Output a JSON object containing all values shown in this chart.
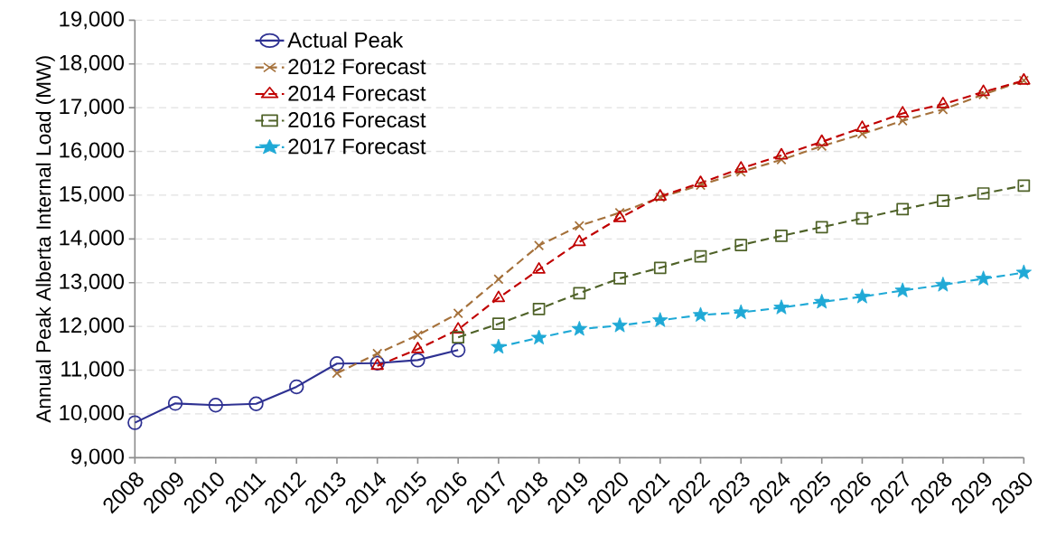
{
  "chart_data": {
    "type": "line",
    "ylabel": "Annual Peak Alberta Internal Load (MW)",
    "categories": [
      "2008",
      "2009",
      "2010",
      "2011",
      "2012",
      "2013",
      "2014",
      "2015",
      "2016",
      "2017",
      "2018",
      "2019",
      "2020",
      "2021",
      "2022",
      "2023",
      "2024",
      "2025",
      "2026",
      "2027",
      "2028",
      "2029",
      "2030"
    ],
    "series": [
      {
        "name": "Actual Peak",
        "color": "#2e3192",
        "marker": "circle",
        "line_style": "solid",
        "values": [
          9800,
          10240,
          10200,
          10230,
          10620,
          11150,
          11160,
          11230,
          11460,
          null,
          null,
          null,
          null,
          null,
          null,
          null,
          null,
          null,
          null,
          null,
          null,
          null,
          null
        ]
      },
      {
        "name": "2012 Forecast",
        "color": "#a5713b",
        "marker": "cross",
        "line_style": "dashed",
        "values": [
          null,
          null,
          null,
          null,
          null,
          10930,
          11380,
          11800,
          12300,
          13080,
          13850,
          14300,
          14600,
          14950,
          15230,
          15530,
          15810,
          16120,
          16400,
          16700,
          16960,
          17300,
          17620
        ]
      },
      {
        "name": "2014 Forecast",
        "color": "#c00000",
        "marker": "triangle",
        "line_style": "dashed",
        "values": [
          null,
          null,
          null,
          null,
          null,
          null,
          11100,
          11480,
          11930,
          12650,
          13300,
          13930,
          14480,
          14970,
          15280,
          15610,
          15910,
          16220,
          16540,
          16870,
          17080,
          17360,
          17620
        ]
      },
      {
        "name": "2016 Forecast",
        "color": "#4f6228",
        "marker": "square",
        "line_style": "dashed",
        "values": [
          null,
          null,
          null,
          null,
          null,
          null,
          null,
          null,
          11750,
          12060,
          12400,
          12760,
          13100,
          13340,
          13600,
          13860,
          14070,
          14270,
          14470,
          14680,
          14870,
          15040,
          15220
        ]
      },
      {
        "name": "2017 Forecast",
        "color": "#1fa9d6",
        "marker": "star",
        "line_style": "dashed",
        "values": [
          null,
          null,
          null,
          null,
          null,
          null,
          null,
          null,
          null,
          11530,
          11740,
          11940,
          12020,
          12140,
          12260,
          12320,
          12430,
          12560,
          12680,
          12820,
          12950,
          13090,
          13230
        ]
      }
    ],
    "ylim": [
      9000,
      19000
    ],
    "yticks": [
      {
        "value": 9000,
        "label": "9,000"
      },
      {
        "value": 10000,
        "label": "10,000"
      },
      {
        "value": 11000,
        "label": "11,000"
      },
      {
        "value": 12000,
        "label": "12,000"
      },
      {
        "value": 13000,
        "label": "13,000"
      },
      {
        "value": 14000,
        "label": "14,000"
      },
      {
        "value": 15000,
        "label": "15,000"
      },
      {
        "value": 16000,
        "label": "16,000"
      },
      {
        "value": 17000,
        "label": "17,000"
      },
      {
        "value": 18000,
        "label": "18,000"
      },
      {
        "value": 19000,
        "label": "19,000"
      }
    ],
    "grid": "y",
    "legend": "top left"
  }
}
